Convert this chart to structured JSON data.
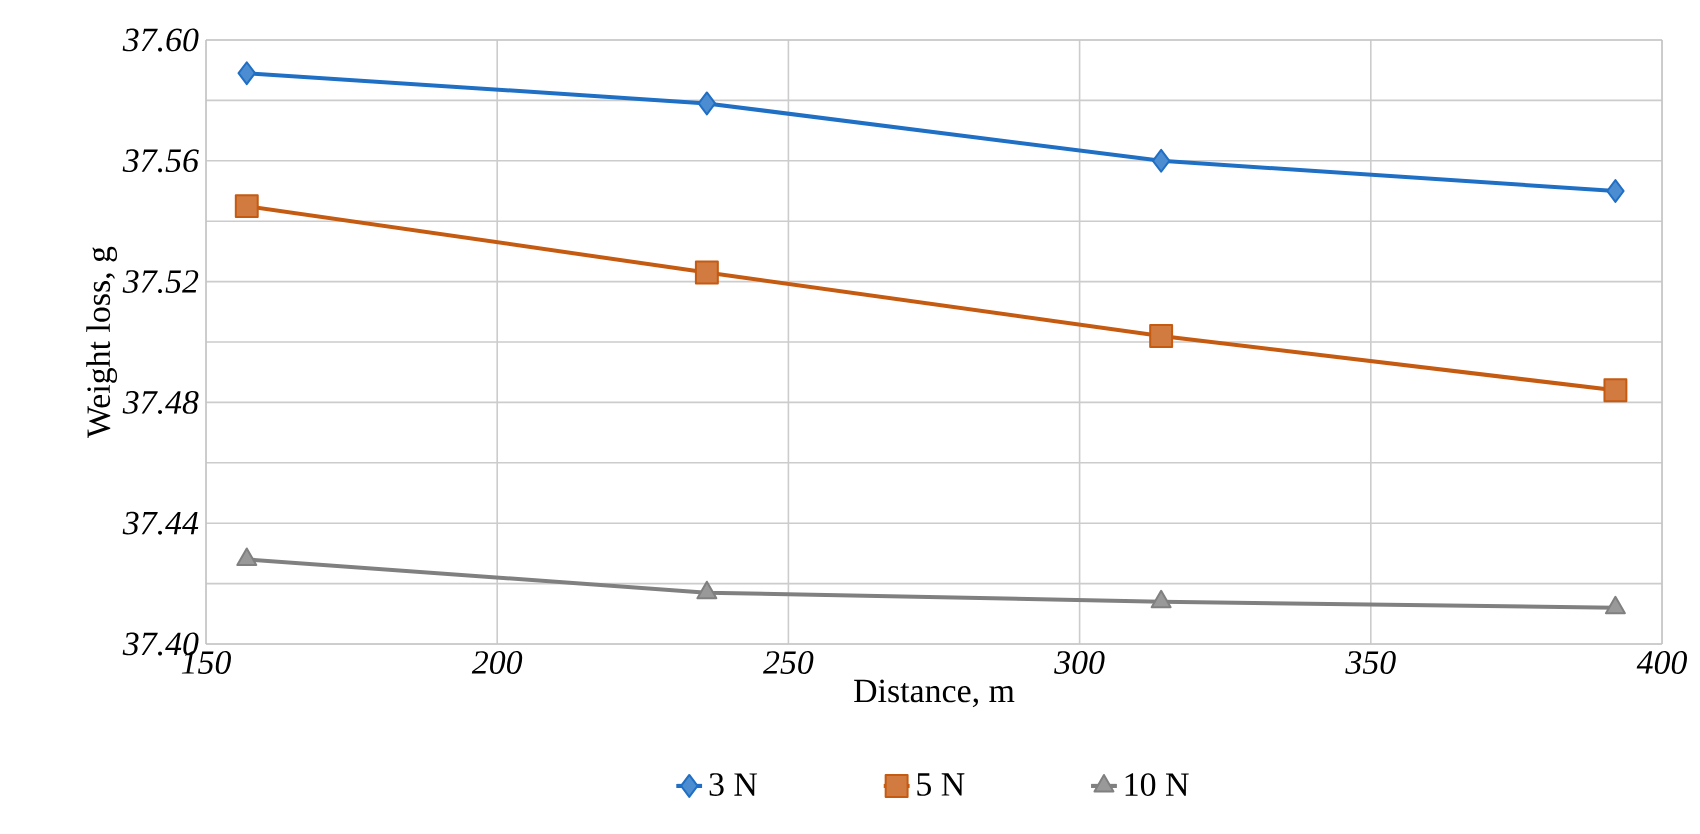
{
  "chart_data": {
    "type": "line",
    "xlabel": "Distance, m",
    "ylabel": "Weight loss, g",
    "x": [
      157,
      236,
      314,
      392
    ],
    "series": [
      {
        "name": "3 N",
        "color": "#1f6fc5",
        "marker": "diamond",
        "values": [
          37.589,
          37.579,
          37.56,
          37.55
        ]
      },
      {
        "name": "5 N",
        "color": "#c55a11",
        "marker": "square",
        "values": [
          37.545,
          37.523,
          37.502,
          37.484
        ]
      },
      {
        "name": "10 N",
        "color": "#808080",
        "marker": "triangle",
        "values": [
          37.428,
          37.417,
          37.414,
          37.412
        ]
      }
    ],
    "xlim": [
      150,
      400
    ],
    "xticks": [
      150,
      200,
      250,
      300,
      350,
      400
    ],
    "ylim": [
      37.4,
      37.6
    ],
    "yticks": [
      {
        "value": 37.4,
        "label": "37.40"
      },
      {
        "value": 37.44,
        "label": "37.44"
      },
      {
        "value": 37.48,
        "label": "37.48"
      },
      {
        "value": 37.52,
        "label": "37.52"
      },
      {
        "value": 37.56,
        "label": "37.56"
      },
      {
        "value": 37.6,
        "label": "37.60"
      }
    ],
    "grid": true,
    "legend": "bottom",
    "line_style": "solid"
  }
}
